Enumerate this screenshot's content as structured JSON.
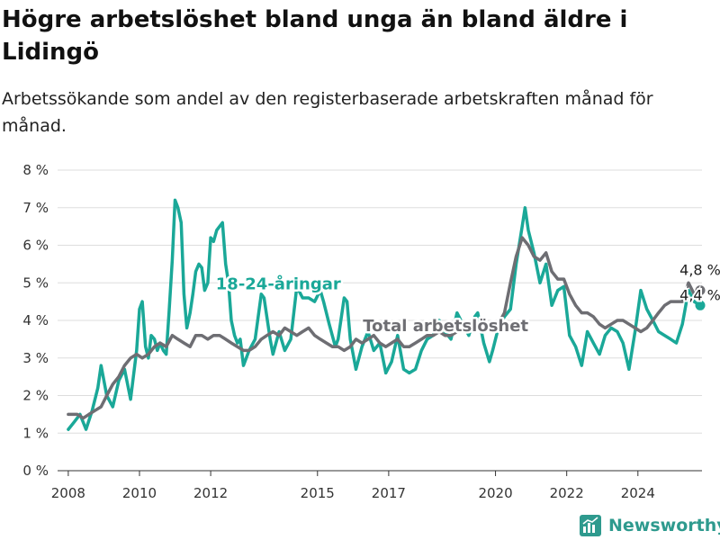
{
  "title": "Högre arbetslöshet bland unga än bland äldre i Lidingö",
  "subtitle": "Arbetssökande som andel av den registerbaserade arbetskraften månad för månad.",
  "brand": {
    "name": "Newsworthy",
    "icon": "newsworthy-logo-icon"
  },
  "chart_data": {
    "type": "line",
    "ylim": [
      0,
      8
    ],
    "xlim": [
      2007.7,
      2025.8
    ],
    "y_ticks": [
      0,
      1,
      2,
      3,
      4,
      5,
      6,
      7,
      8
    ],
    "y_tick_labels": [
      "0 %",
      "1 %",
      "2 %",
      "3 %",
      "4 %",
      "5 %",
      "6 %",
      "7 %",
      "8 %"
    ],
    "x_ticks": [
      2008,
      2010,
      2012,
      2015,
      2017,
      2020,
      2022,
      2024
    ],
    "x_tick_labels": [
      "2008",
      "2010",
      "2012",
      "2015",
      "2017",
      "2020",
      "2022",
      "2024"
    ],
    "grid": true,
    "series": [
      {
        "name": "Total arbetslöshet",
        "color": "#6e6e73",
        "end_label": "4,8 %",
        "points": [
          [
            2008.0,
            1.5
          ],
          [
            2008.25,
            1.5
          ],
          [
            2008.42,
            1.4
          ],
          [
            2008.58,
            1.5
          ],
          [
            2008.75,
            1.6
          ],
          [
            2008.92,
            1.7
          ],
          [
            2009.08,
            2.0
          ],
          [
            2009.25,
            2.3
          ],
          [
            2009.42,
            2.5
          ],
          [
            2009.58,
            2.8
          ],
          [
            2009.75,
            3.0
          ],
          [
            2009.92,
            3.1
          ],
          [
            2010.08,
            3.0
          ],
          [
            2010.25,
            3.1
          ],
          [
            2010.42,
            3.3
          ],
          [
            2010.58,
            3.4
          ],
          [
            2010.75,
            3.3
          ],
          [
            2010.92,
            3.6
          ],
          [
            2011.08,
            3.5
          ],
          [
            2011.25,
            3.4
          ],
          [
            2011.42,
            3.3
          ],
          [
            2011.58,
            3.6
          ],
          [
            2011.75,
            3.6
          ],
          [
            2011.92,
            3.5
          ],
          [
            2012.08,
            3.6
          ],
          [
            2012.25,
            3.6
          ],
          [
            2012.42,
            3.5
          ],
          [
            2012.58,
            3.4
          ],
          [
            2012.75,
            3.3
          ],
          [
            2012.92,
            3.2
          ],
          [
            2013.08,
            3.2
          ],
          [
            2013.25,
            3.3
          ],
          [
            2013.42,
            3.5
          ],
          [
            2013.58,
            3.6
          ],
          [
            2013.75,
            3.7
          ],
          [
            2013.92,
            3.6
          ],
          [
            2014.08,
            3.8
          ],
          [
            2014.25,
            3.7
          ],
          [
            2014.42,
            3.6
          ],
          [
            2014.58,
            3.7
          ],
          [
            2014.75,
            3.8
          ],
          [
            2014.92,
            3.6
          ],
          [
            2015.08,
            3.5
          ],
          [
            2015.25,
            3.4
          ],
          [
            2015.42,
            3.3
          ],
          [
            2015.58,
            3.3
          ],
          [
            2015.75,
            3.2
          ],
          [
            2015.92,
            3.3
          ],
          [
            2016.08,
            3.5
          ],
          [
            2016.25,
            3.4
          ],
          [
            2016.42,
            3.5
          ],
          [
            2016.58,
            3.6
          ],
          [
            2016.75,
            3.4
          ],
          [
            2016.92,
            3.3
          ],
          [
            2017.08,
            3.4
          ],
          [
            2017.25,
            3.5
          ],
          [
            2017.42,
            3.3
          ],
          [
            2017.58,
            3.3
          ],
          [
            2017.75,
            3.4
          ],
          [
            2017.92,
            3.5
          ],
          [
            2018.08,
            3.6
          ],
          [
            2018.25,
            3.6
          ],
          [
            2018.42,
            3.7
          ],
          [
            2018.58,
            3.6
          ],
          [
            2018.75,
            3.6
          ],
          [
            2018.92,
            3.7
          ],
          [
            2019.08,
            3.8
          ],
          [
            2019.25,
            3.7
          ],
          [
            2019.42,
            3.9
          ],
          [
            2019.58,
            3.8
          ],
          [
            2019.75,
            3.8
          ],
          [
            2019.92,
            3.8
          ],
          [
            2020.08,
            3.9
          ],
          [
            2020.25,
            4.2
          ],
          [
            2020.42,
            5.0
          ],
          [
            2020.58,
            5.7
          ],
          [
            2020.75,
            6.2
          ],
          [
            2020.92,
            6.0
          ],
          [
            2021.08,
            5.7
          ],
          [
            2021.25,
            5.6
          ],
          [
            2021.42,
            5.8
          ],
          [
            2021.58,
            5.3
          ],
          [
            2021.75,
            5.1
          ],
          [
            2021.92,
            5.1
          ],
          [
            2022.08,
            4.7
          ],
          [
            2022.25,
            4.4
          ],
          [
            2022.42,
            4.2
          ],
          [
            2022.58,
            4.2
          ],
          [
            2022.75,
            4.1
          ],
          [
            2022.92,
            3.9
          ],
          [
            2023.08,
            3.8
          ],
          [
            2023.25,
            3.9
          ],
          [
            2023.42,
            4.0
          ],
          [
            2023.58,
            4.0
          ],
          [
            2023.75,
            3.9
          ],
          [
            2023.92,
            3.8
          ],
          [
            2024.08,
            3.7
          ],
          [
            2024.25,
            3.8
          ],
          [
            2024.42,
            4.0
          ],
          [
            2024.58,
            4.2
          ],
          [
            2024.75,
            4.4
          ],
          [
            2024.92,
            4.5
          ],
          [
            2025.08,
            4.5
          ],
          [
            2025.25,
            4.5
          ],
          [
            2025.42,
            5.0
          ],
          [
            2025.58,
            4.7
          ],
          [
            2025.75,
            4.8
          ]
        ]
      },
      {
        "name": "18-24-åringar",
        "color": "#1aa898",
        "end_label": "4,4 %",
        "points": [
          [
            2008.0,
            1.1
          ],
          [
            2008.17,
            1.3
          ],
          [
            2008.33,
            1.5
          ],
          [
            2008.5,
            1.1
          ],
          [
            2008.67,
            1.6
          ],
          [
            2008.83,
            2.2
          ],
          [
            2008.92,
            2.8
          ],
          [
            2009.08,
            2.0
          ],
          [
            2009.25,
            1.7
          ],
          [
            2009.42,
            2.4
          ],
          [
            2009.58,
            2.7
          ],
          [
            2009.75,
            1.9
          ],
          [
            2009.92,
            3.2
          ],
          [
            2010.0,
            4.3
          ],
          [
            2010.08,
            4.5
          ],
          [
            2010.17,
            3.3
          ],
          [
            2010.25,
            3.0
          ],
          [
            2010.33,
            3.6
          ],
          [
            2010.42,
            3.5
          ],
          [
            2010.5,
            3.2
          ],
          [
            2010.58,
            3.4
          ],
          [
            2010.67,
            3.2
          ],
          [
            2010.75,
            3.1
          ],
          [
            2010.83,
            4.2
          ],
          [
            2010.92,
            5.6
          ],
          [
            2011.0,
            7.2
          ],
          [
            2011.08,
            7.0
          ],
          [
            2011.17,
            6.6
          ],
          [
            2011.25,
            4.7
          ],
          [
            2011.33,
            3.8
          ],
          [
            2011.42,
            4.2
          ],
          [
            2011.5,
            4.7
          ],
          [
            2011.58,
            5.3
          ],
          [
            2011.67,
            5.5
          ],
          [
            2011.75,
            5.4
          ],
          [
            2011.83,
            4.8
          ],
          [
            2011.92,
            5.0
          ],
          [
            2012.0,
            6.2
          ],
          [
            2012.08,
            6.1
          ],
          [
            2012.17,
            6.4
          ],
          [
            2012.25,
            6.5
          ],
          [
            2012.33,
            6.6
          ],
          [
            2012.42,
            5.5
          ],
          [
            2012.5,
            5.0
          ],
          [
            2012.58,
            4.0
          ],
          [
            2012.67,
            3.6
          ],
          [
            2012.75,
            3.4
          ],
          [
            2012.83,
            3.5
          ],
          [
            2012.92,
            2.8
          ],
          [
            2013.08,
            3.2
          ],
          [
            2013.25,
            3.5
          ],
          [
            2013.42,
            4.7
          ],
          [
            2013.5,
            4.6
          ],
          [
            2013.67,
            3.5
          ],
          [
            2013.75,
            3.1
          ],
          [
            2013.92,
            3.7
          ],
          [
            2014.08,
            3.2
          ],
          [
            2014.25,
            3.5
          ],
          [
            2014.42,
            4.9
          ],
          [
            2014.58,
            4.6
          ],
          [
            2014.75,
            4.6
          ],
          [
            2014.92,
            4.5
          ],
          [
            2015.08,
            4.8
          ],
          [
            2015.17,
            4.5
          ],
          [
            2015.33,
            3.9
          ],
          [
            2015.5,
            3.3
          ],
          [
            2015.58,
            3.5
          ],
          [
            2015.75,
            4.6
          ],
          [
            2015.83,
            4.5
          ],
          [
            2015.92,
            3.5
          ],
          [
            2016.08,
            2.7
          ],
          [
            2016.25,
            3.3
          ],
          [
            2016.42,
            3.7
          ],
          [
            2016.58,
            3.2
          ],
          [
            2016.75,
            3.4
          ],
          [
            2016.92,
            2.6
          ],
          [
            2017.08,
            2.9
          ],
          [
            2017.25,
            3.6
          ],
          [
            2017.42,
            2.7
          ],
          [
            2017.58,
            2.6
          ],
          [
            2017.75,
            2.7
          ],
          [
            2017.92,
            3.2
          ],
          [
            2018.08,
            3.5
          ],
          [
            2018.25,
            3.6
          ],
          [
            2018.42,
            4.0
          ],
          [
            2018.58,
            3.7
          ],
          [
            2018.75,
            3.5
          ],
          [
            2018.92,
            4.2
          ],
          [
            2019.08,
            3.9
          ],
          [
            2019.25,
            3.6
          ],
          [
            2019.42,
            4.1
          ],
          [
            2019.5,
            4.2
          ],
          [
            2019.67,
            3.4
          ],
          [
            2019.83,
            2.9
          ],
          [
            2019.92,
            3.2
          ],
          [
            2020.08,
            3.8
          ],
          [
            2020.25,
            4.1
          ],
          [
            2020.42,
            4.3
          ],
          [
            2020.58,
            5.5
          ],
          [
            2020.75,
            6.5
          ],
          [
            2020.83,
            7.0
          ],
          [
            2020.92,
            6.4
          ],
          [
            2021.08,
            5.8
          ],
          [
            2021.25,
            5.0
          ],
          [
            2021.42,
            5.5
          ],
          [
            2021.58,
            4.4
          ],
          [
            2021.75,
            4.8
          ],
          [
            2021.92,
            4.9
          ],
          [
            2022.08,
            3.6
          ],
          [
            2022.25,
            3.3
          ],
          [
            2022.42,
            2.8
          ],
          [
            2022.58,
            3.7
          ],
          [
            2022.75,
            3.4
          ],
          [
            2022.92,
            3.1
          ],
          [
            2023.08,
            3.6
          ],
          [
            2023.25,
            3.8
          ],
          [
            2023.42,
            3.7
          ],
          [
            2023.58,
            3.4
          ],
          [
            2023.75,
            2.7
          ],
          [
            2023.92,
            3.7
          ],
          [
            2024.08,
            4.8
          ],
          [
            2024.25,
            4.3
          ],
          [
            2024.42,
            4.0
          ],
          [
            2024.58,
            3.7
          ],
          [
            2024.75,
            3.6
          ],
          [
            2024.92,
            3.5
          ],
          [
            2025.08,
            3.4
          ],
          [
            2025.25,
            3.9
          ],
          [
            2025.42,
            4.8
          ],
          [
            2025.58,
            4.5
          ],
          [
            2025.75,
            4.4
          ]
        ]
      }
    ],
    "annotations": [
      {
        "text": "18-24-åringar",
        "x": 2013.9,
        "y": 4.83,
        "color": "#1aa898"
      },
      {
        "text": "Total arbetslöshet",
        "x": 2018.6,
        "y": 3.71,
        "color": "#6e6e73"
      }
    ]
  }
}
